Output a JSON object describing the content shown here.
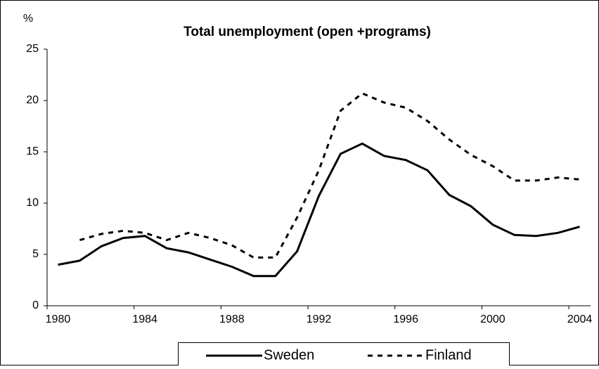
{
  "chart_data": {
    "type": "line",
    "title": "Total unemployment (open +programs)",
    "y_label": "%",
    "categories": [
      "1980",
      null,
      null,
      null,
      "1984",
      null,
      null,
      null,
      "1988",
      null,
      null,
      null,
      "1992",
      null,
      null,
      null,
      "1996",
      null,
      null,
      null,
      "2000",
      null,
      null,
      null,
      "2004"
    ],
    "series": [
      {
        "name": "Sweden",
        "color": "#000000",
        "style": "solid",
        "values": [
          4.0,
          4.4,
          5.8,
          6.6,
          6.8,
          5.6,
          5.2,
          4.5,
          3.8,
          2.9,
          2.9,
          5.3,
          10.7,
          14.8,
          15.8,
          14.6,
          14.2,
          13.2,
          10.8,
          9.7,
          7.9,
          6.9,
          6.8,
          7.1,
          7.7
        ]
      },
      {
        "name": "Finland",
        "color": "#000000",
        "style": "dashed",
        "values": [
          null,
          6.4,
          7.0,
          7.3,
          7.1,
          6.4,
          7.1,
          6.6,
          5.9,
          4.7,
          4.7,
          8.6,
          13.2,
          19.0,
          20.7,
          19.8,
          19.3,
          18.0,
          16.2,
          14.7,
          13.6,
          12.2,
          12.2,
          12.5,
          12.3
        ]
      }
    ],
    "ylim": [
      0,
      25
    ],
    "yticks": [
      0,
      5,
      10,
      15,
      20,
      25
    ],
    "grid": false,
    "legend": "bottom"
  }
}
